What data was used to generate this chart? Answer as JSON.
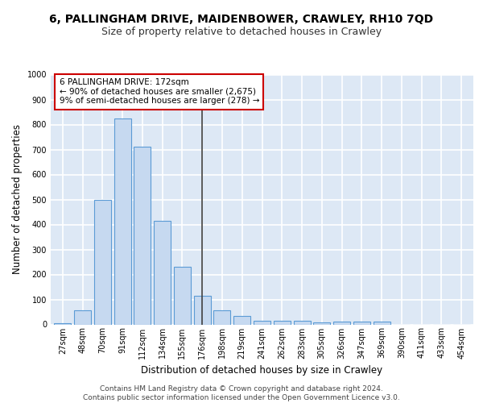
{
  "title1": "6, PALLINGHAM DRIVE, MAIDENBOWER, CRAWLEY, RH10 7QD",
  "title2": "Size of property relative to detached houses in Crawley",
  "xlabel": "Distribution of detached houses by size in Crawley",
  "ylabel": "Number of detached properties",
  "categories": [
    "27sqm",
    "48sqm",
    "70sqm",
    "91sqm",
    "112sqm",
    "134sqm",
    "155sqm",
    "176sqm",
    "198sqm",
    "219sqm",
    "241sqm",
    "262sqm",
    "283sqm",
    "305sqm",
    "326sqm",
    "347sqm",
    "369sqm",
    "390sqm",
    "411sqm",
    "433sqm",
    "454sqm"
  ],
  "values": [
    5,
    57,
    500,
    825,
    710,
    415,
    230,
    115,
    55,
    33,
    15,
    15,
    13,
    8,
    10,
    10,
    10,
    0,
    0,
    0,
    0
  ],
  "bar_color": "#c6d9f0",
  "bar_edge_color": "#5b9bd5",
  "vline_x": 7,
  "vline_color": "#404040",
  "annotation_text": "6 PALLINGHAM DRIVE: 172sqm\n← 90% of detached houses are smaller (2,675)\n9% of semi-detached houses are larger (278) →",
  "annotation_box_color": "#ffffff",
  "annotation_box_edge": "#cc0000",
  "ylim": [
    0,
    1000
  ],
  "yticks": [
    0,
    100,
    200,
    300,
    400,
    500,
    600,
    700,
    800,
    900,
    1000
  ],
  "bg_color": "#dde8f5",
  "grid_color": "#ffffff",
  "footer1": "Contains HM Land Registry data © Crown copyright and database right 2024.",
  "footer2": "Contains public sector information licensed under the Open Government Licence v3.0.",
  "title1_fontsize": 10,
  "title2_fontsize": 9,
  "xlabel_fontsize": 8.5,
  "ylabel_fontsize": 8.5,
  "tick_fontsize": 7,
  "footer_fontsize": 6.5,
  "annot_fontsize": 7.5
}
